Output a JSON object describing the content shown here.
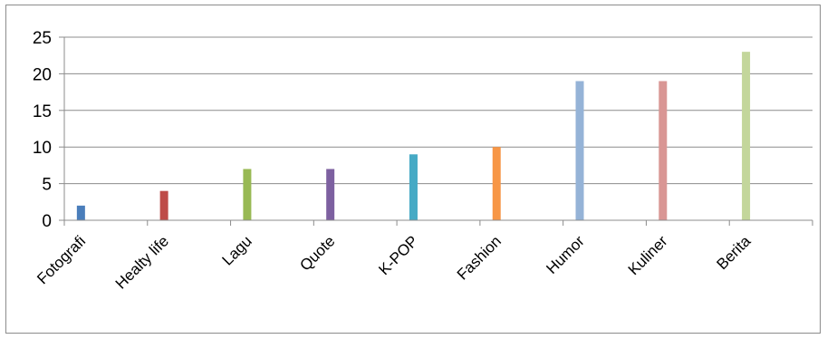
{
  "chart_data": {
    "type": "bar",
    "title": "",
    "xlabel": "",
    "ylabel": "",
    "categories": [
      "Fotografi",
      "Healty life",
      "Lagu",
      "Quote",
      "K-POP",
      "Fashion",
      "Humor",
      "Kuliner",
      "Berita"
    ],
    "values": [
      2,
      4,
      7,
      7,
      9,
      10,
      19,
      19,
      23
    ],
    "colors": [
      "#4a7ebb",
      "#be4b48",
      "#98b954",
      "#7d60a0",
      "#46aac5",
      "#f79646",
      "#95b3d7",
      "#d99694",
      "#c3d69b"
    ],
    "ylim": [
      0,
      25
    ],
    "yticks": [
      0,
      5,
      10,
      15,
      20,
      25
    ],
    "grid": true,
    "legend": "none"
  }
}
